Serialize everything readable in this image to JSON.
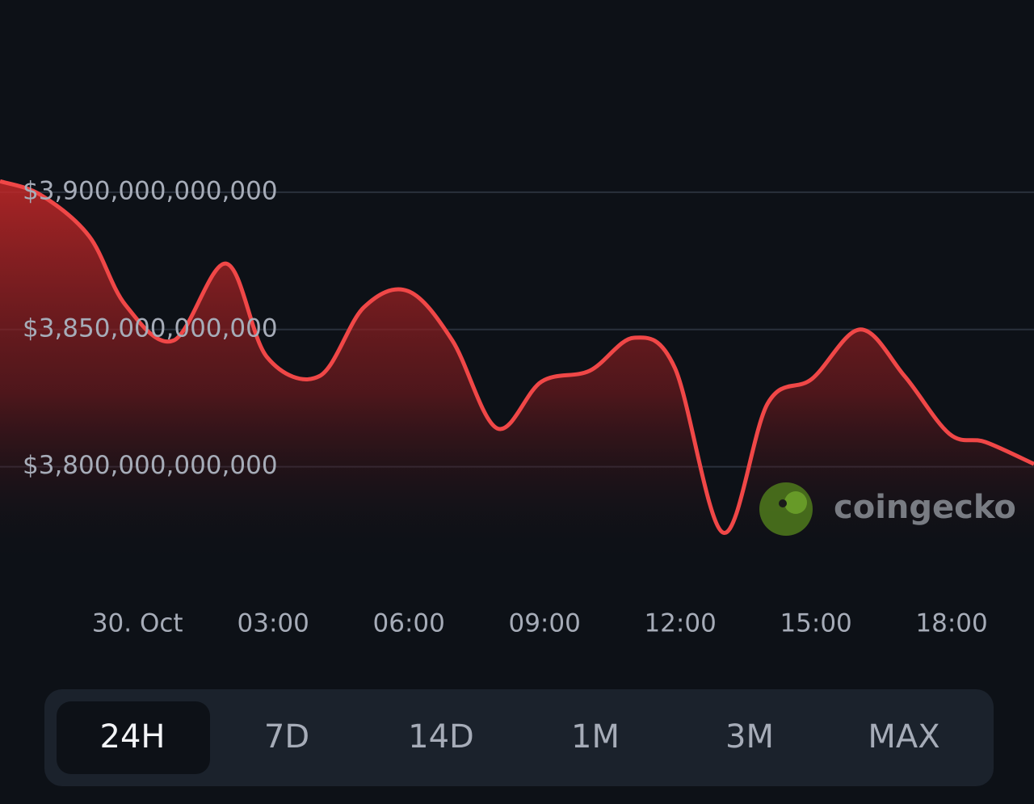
{
  "chart_data": {
    "type": "line",
    "x": [
      -3.04,
      -2.14,
      -1.07,
      -0.27,
      0.8,
      1.96,
      2.86,
      4.02,
      5.0,
      5.98,
      6.96,
      7.95,
      8.93,
      10.0,
      10.98,
      11.88,
      12.95,
      13.93,
      14.91,
      15.98,
      16.96,
      17.95,
      18.75,
      19.82
    ],
    "values": [
      3904000000000,
      3899000000000,
      3884000000000,
      3859000000000,
      3846000000000,
      3874000000000,
      3840000000000,
      3833000000000,
      3858000000000,
      3864000000000,
      3846000000000,
      3814000000000,
      3831000000000,
      3835000000000,
      3847000000000,
      3836000000000,
      3776000000000,
      3823000000000,
      3832000000000,
      3850000000000,
      3833000000000,
      3812000000000,
      3809000000000,
      3801000000000
    ],
    "color": "#f04747",
    "xlim": [
      -3.04,
      19.82
    ],
    "xticks": [
      {
        "value": 0,
        "label": "30. Oct"
      },
      {
        "value": 3,
        "label": "03:00"
      },
      {
        "value": 6,
        "label": "06:00"
      },
      {
        "value": 9,
        "label": "09:00"
      },
      {
        "value": 12,
        "label": "12:00"
      },
      {
        "value": 15,
        "label": "15:00"
      },
      {
        "value": 18,
        "label": "18:00"
      }
    ],
    "ylim": [
      3764000000000,
      3970000000000
    ],
    "yticks": [
      {
        "value": 3800000000000,
        "label": "$3,800,000,000,000"
      },
      {
        "value": 3850000000000,
        "label": "$3,850,000,000,000"
      },
      {
        "value": 3900000000000,
        "label": "$3,900,000,000,000"
      }
    ],
    "grid": true,
    "watermark": "coingecko"
  },
  "range_buttons": [
    "24H",
    "7D",
    "14D",
    "1M",
    "3M",
    "MAX"
  ],
  "selected_index": 0
}
